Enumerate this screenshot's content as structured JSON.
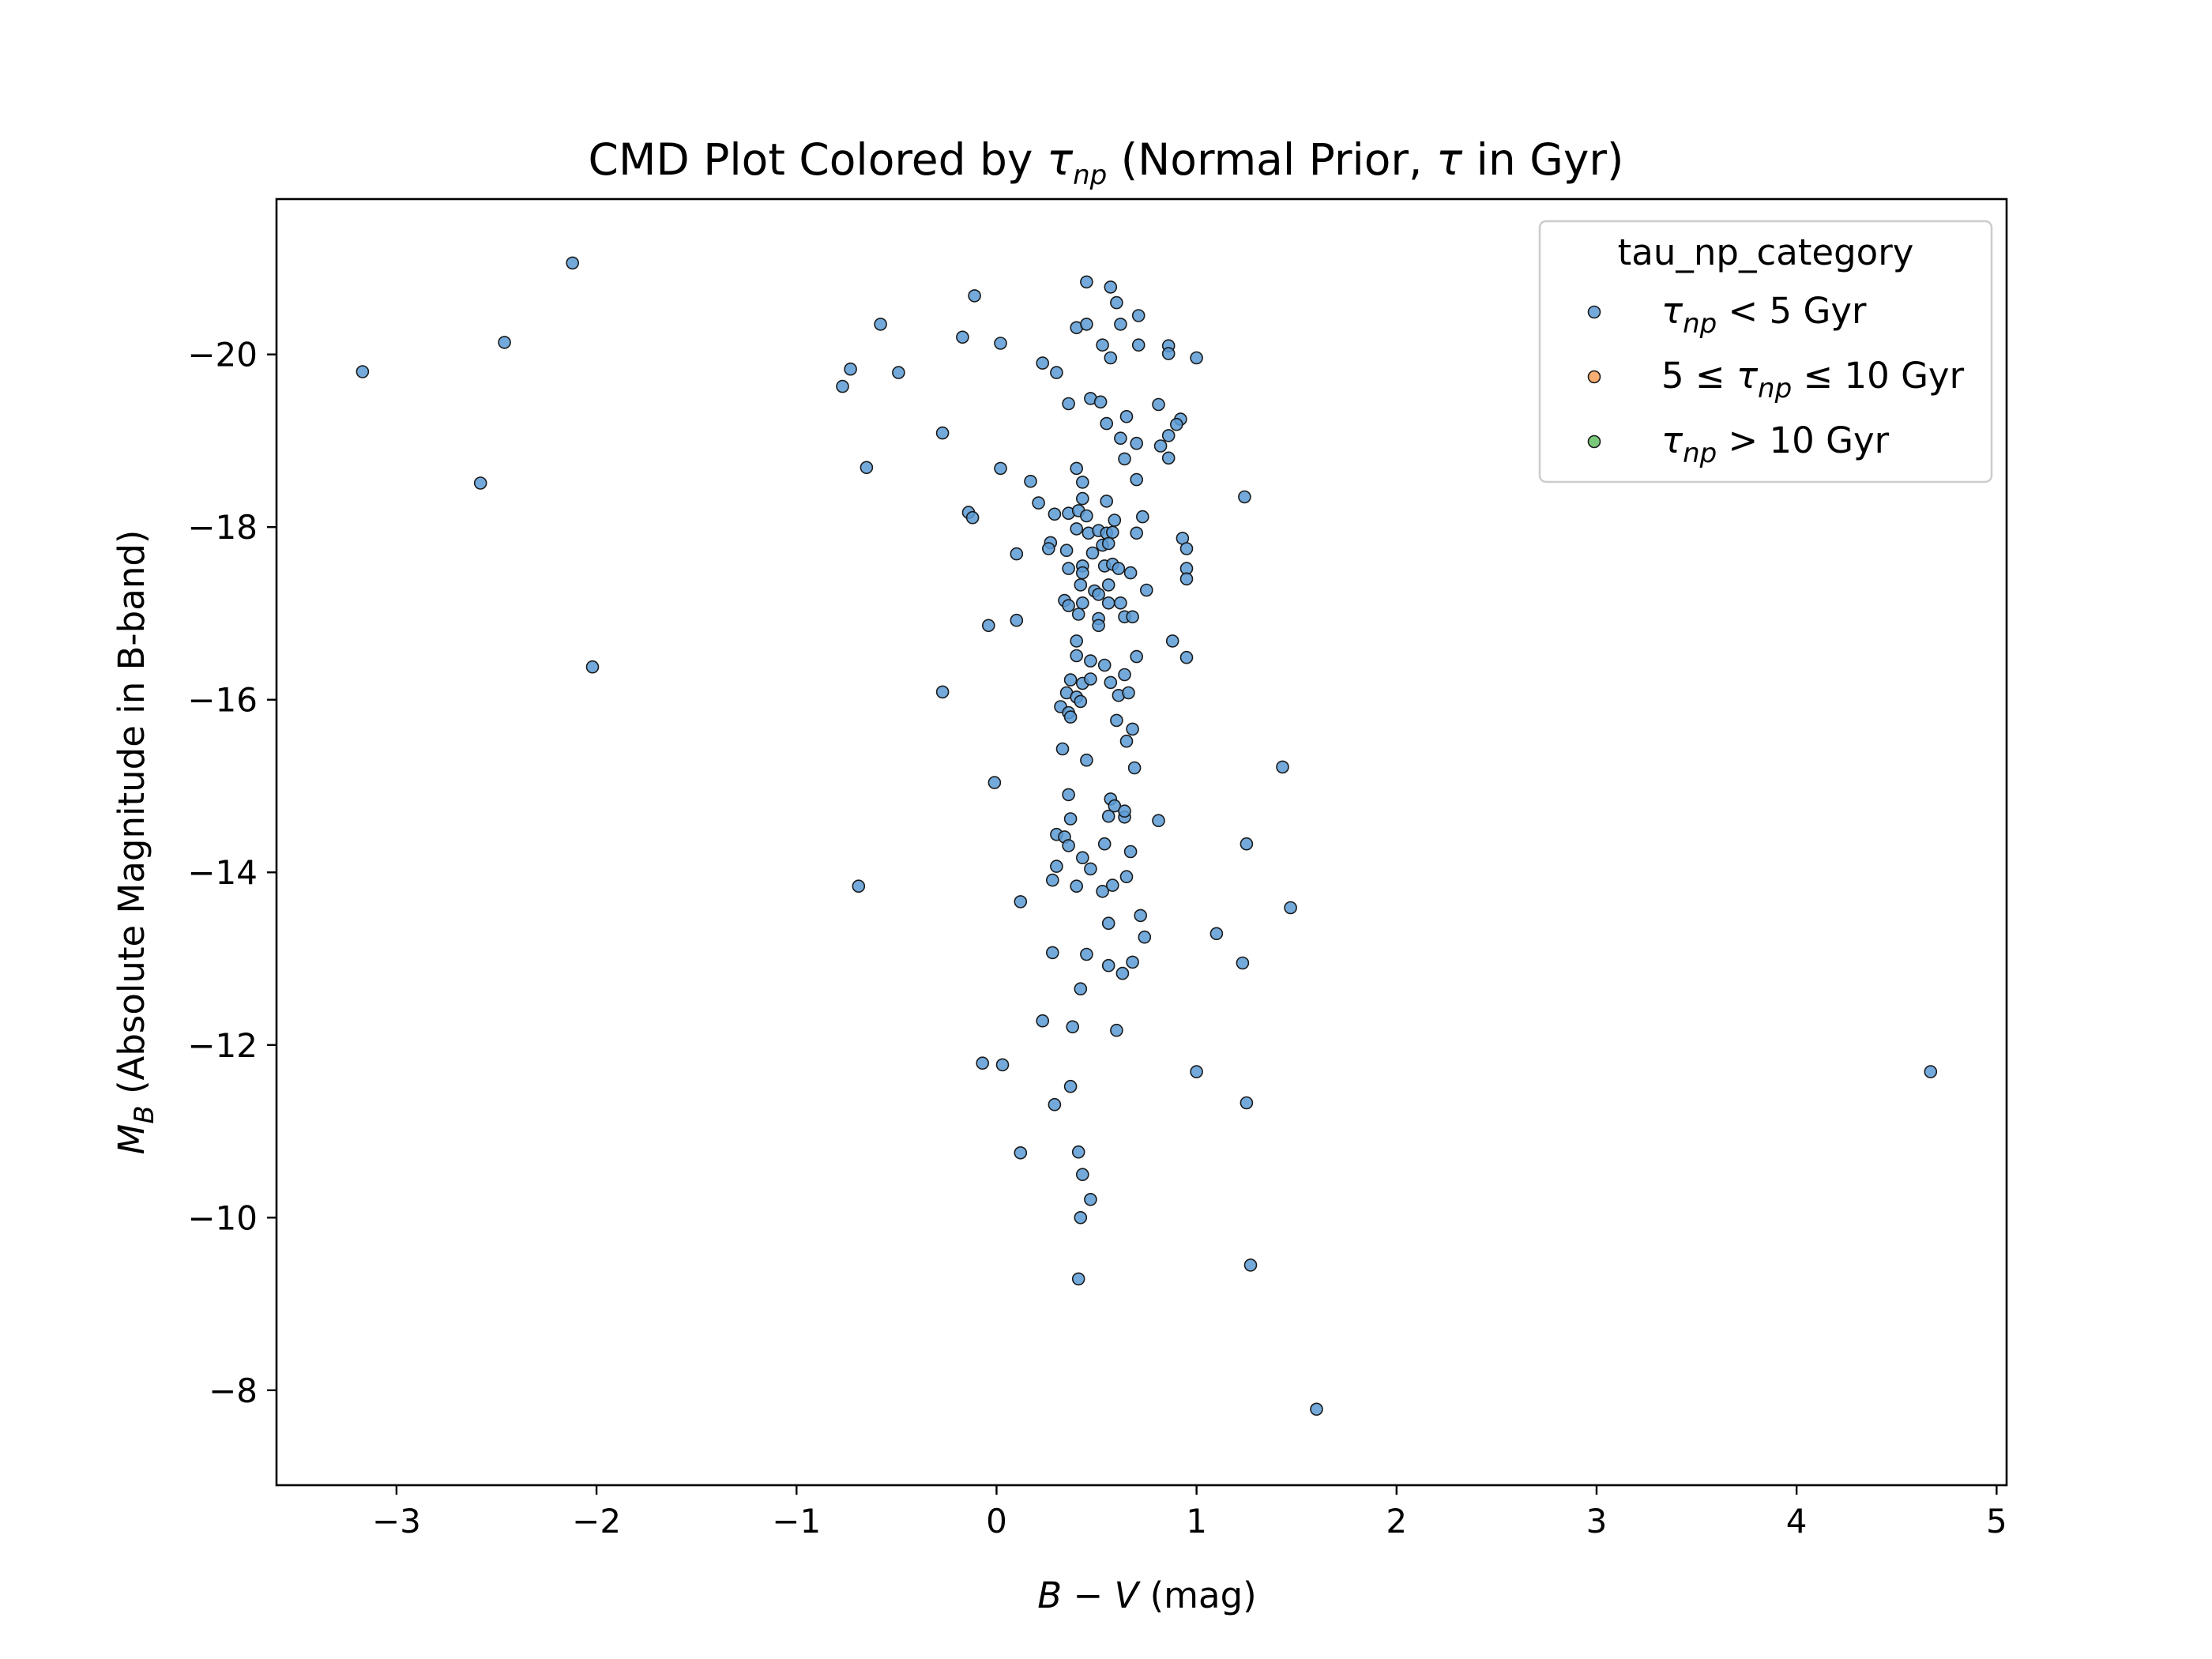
{
  "chart_data": {
    "type": "scatter",
    "title": {
      "prefix": "CMD Plot Colored by ",
      "tau_symbol": "τ",
      "tau_subscript": "np",
      "suffix_a": " (Normal Prior, ",
      "tau_symbol_2": "τ",
      "suffix_b": " in Gyr)"
    },
    "xlabel": {
      "b": "B",
      "minus": " − ",
      "v": "V",
      "unit": " (mag)"
    },
    "ylabel": {
      "m": "M",
      "sub": "B",
      "rest": " (Absolute Magnitude in B-band)"
    },
    "xlim": [
      -3.6,
      5.05
    ],
    "ylim": [
      -21.8,
      -6.9
    ],
    "y_inverted": true,
    "grid": false,
    "x_ticks": [
      {
        "value": -3,
        "label": "−3"
      },
      {
        "value": -2,
        "label": "−2"
      },
      {
        "value": -1,
        "label": "−1"
      },
      {
        "value": 0,
        "label": "0"
      },
      {
        "value": 1,
        "label": "1"
      },
      {
        "value": 2,
        "label": "2"
      },
      {
        "value": 3,
        "label": "3"
      },
      {
        "value": 4,
        "label": "4"
      },
      {
        "value": 5,
        "label": "5"
      }
    ],
    "y_ticks": [
      {
        "value": -20,
        "label": "−20"
      },
      {
        "value": -18,
        "label": "−18"
      },
      {
        "value": -16,
        "label": "−16"
      },
      {
        "value": -14,
        "label": "−14"
      },
      {
        "value": -12,
        "label": "−12"
      },
      {
        "value": -10,
        "label": "−10"
      },
      {
        "value": -8,
        "label": "−8"
      }
    ],
    "legend": {
      "title": "tau_np_category",
      "placement": "top-right",
      "entries": [
        {
          "tau": "τ",
          "sub": "np",
          "pre": "",
          "post": " < 5 Gyr",
          "color": "#5b9bd5"
        },
        {
          "tau": "τ",
          "sub": "np",
          "pre": "5 ≤ ",
          "post": " ≤ 10 Gyr",
          "color": "#f5a05a"
        },
        {
          "tau": "τ",
          "sub": "np",
          "pre": "",
          "post": " > 10 Gyr",
          "color": "#63c063"
        }
      ]
    },
    "series": [
      {
        "color": "#5b9bd5",
        "edge": "#1a1a1a",
        "points": [
          [
            -2.12,
            -21.06
          ],
          [
            -3.17,
            -19.8
          ],
          [
            -2.46,
            -20.14
          ],
          [
            -2.58,
            -18.51
          ],
          [
            -2.02,
            -16.38
          ],
          [
            -0.11,
            -20.68
          ],
          [
            -0.17,
            -20.2
          ],
          [
            0.02,
            -20.13
          ],
          [
            -0.58,
            -20.35
          ],
          [
            -0.73,
            -19.83
          ],
          [
            -0.77,
            -19.63
          ],
          [
            -0.49,
            -19.79
          ],
          [
            -0.27,
            -19.09
          ],
          [
            -0.65,
            -18.69
          ],
          [
            0.02,
            -18.68
          ],
          [
            -0.14,
            -18.17
          ],
          [
            -0.12,
            -18.11
          ],
          [
            0.1,
            -17.69
          ],
          [
            0.1,
            -16.92
          ],
          [
            -0.04,
            -16.86
          ],
          [
            -0.27,
            -16.09
          ],
          [
            -0.01,
            -15.04
          ],
          [
            -0.69,
            -13.84
          ],
          [
            0.12,
            -13.66
          ],
          [
            -0.07,
            -11.79
          ],
          [
            0.03,
            -11.77
          ],
          [
            0.12,
            -10.75
          ],
          [
            0.45,
            -20.84
          ],
          [
            0.57,
            -20.78
          ],
          [
            0.6,
            -20.6
          ],
          [
            0.4,
            -20.31
          ],
          [
            0.45,
            -20.35
          ],
          [
            0.62,
            -20.35
          ],
          [
            0.71,
            -20.45
          ],
          [
            0.53,
            -20.11
          ],
          [
            0.71,
            -20.11
          ],
          [
            0.86,
            -20.1
          ],
          [
            0.23,
            -19.9
          ],
          [
            0.3,
            -19.79
          ],
          [
            0.57,
            -19.96
          ],
          [
            0.86,
            -20.01
          ],
          [
            1.0,
            -19.96
          ],
          [
            0.36,
            -19.43
          ],
          [
            0.47,
            -19.49
          ],
          [
            0.52,
            -19.45
          ],
          [
            0.81,
            -19.42
          ],
          [
            0.55,
            -19.2
          ],
          [
            0.65,
            -19.28
          ],
          [
            0.92,
            -19.25
          ],
          [
            0.9,
            -19.19
          ],
          [
            0.62,
            -19.03
          ],
          [
            0.7,
            -18.97
          ],
          [
            0.86,
            -19.06
          ],
          [
            0.82,
            -18.94
          ],
          [
            0.64,
            -18.79
          ],
          [
            0.86,
            -18.8
          ],
          [
            0.4,
            -18.68
          ],
          [
            0.17,
            -18.53
          ],
          [
            0.43,
            -18.52
          ],
          [
            0.7,
            -18.55
          ],
          [
            0.21,
            -18.28
          ],
          [
            0.43,
            -18.33
          ],
          [
            0.55,
            -18.3
          ],
          [
            1.24,
            -18.35
          ],
          [
            0.29,
            -18.15
          ],
          [
            0.36,
            -18.16
          ],
          [
            0.41,
            -18.19
          ],
          [
            0.45,
            -18.13
          ],
          [
            0.59,
            -18.08
          ],
          [
            0.73,
            -18.12
          ],
          [
            0.4,
            -17.98
          ],
          [
            0.46,
            -17.93
          ],
          [
            0.51,
            -17.96
          ],
          [
            0.55,
            -17.93
          ],
          [
            0.58,
            -17.94
          ],
          [
            0.7,
            -17.93
          ],
          [
            0.93,
            -17.87
          ],
          [
            0.27,
            -17.82
          ],
          [
            0.26,
            -17.75
          ],
          [
            0.35,
            -17.73
          ],
          [
            0.48,
            -17.7
          ],
          [
            0.53,
            -17.79
          ],
          [
            0.56,
            -17.81
          ],
          [
            0.95,
            -17.75
          ],
          [
            0.36,
            -17.52
          ],
          [
            0.43,
            -17.55
          ],
          [
            0.54,
            -17.55
          ],
          [
            0.58,
            -17.57
          ],
          [
            0.61,
            -17.52
          ],
          [
            0.43,
            -17.47
          ],
          [
            0.67,
            -17.47
          ],
          [
            0.95,
            -17.52
          ],
          [
            0.95,
            -17.4
          ],
          [
            0.42,
            -17.33
          ],
          [
            0.49,
            -17.26
          ],
          [
            0.51,
            -17.22
          ],
          [
            0.56,
            -17.33
          ],
          [
            0.75,
            -17.27
          ],
          [
            0.34,
            -17.15
          ],
          [
            0.36,
            -17.09
          ],
          [
            0.43,
            -17.12
          ],
          [
            0.56,
            -17.12
          ],
          [
            0.62,
            -17.12
          ],
          [
            0.41,
            -16.99
          ],
          [
            0.51,
            -16.94
          ],
          [
            0.64,
            -16.96
          ],
          [
            0.68,
            -16.96
          ],
          [
            0.51,
            -16.86
          ],
          [
            0.4,
            -16.68
          ],
          [
            0.88,
            -16.68
          ],
          [
            0.4,
            -16.51
          ],
          [
            0.47,
            -16.45
          ],
          [
            0.54,
            -16.4
          ],
          [
            0.7,
            -16.5
          ],
          [
            0.95,
            -16.49
          ],
          [
            0.64,
            -16.29
          ],
          [
            0.37,
            -16.23
          ],
          [
            0.43,
            -16.19
          ],
          [
            0.47,
            -16.24
          ],
          [
            0.57,
            -16.2
          ],
          [
            0.35,
            -16.08
          ],
          [
            0.4,
            -16.03
          ],
          [
            0.42,
            -15.98
          ],
          [
            0.61,
            -16.05
          ],
          [
            0.66,
            -16.08
          ],
          [
            0.32,
            -15.92
          ],
          [
            0.36,
            -15.85
          ],
          [
            0.37,
            -15.8
          ],
          [
            0.6,
            -15.76
          ],
          [
            0.68,
            -15.66
          ],
          [
            0.65,
            -15.52
          ],
          [
            0.33,
            -15.43
          ],
          [
            0.45,
            -15.3
          ],
          [
            0.69,
            -15.21
          ],
          [
            1.43,
            -15.22
          ],
          [
            0.36,
            -14.9
          ],
          [
            0.57,
            -14.85
          ],
          [
            0.59,
            -14.77
          ],
          [
            0.37,
            -14.62
          ],
          [
            0.56,
            -14.65
          ],
          [
            0.64,
            -14.64
          ],
          [
            0.64,
            -14.71
          ],
          [
            0.81,
            -14.6
          ],
          [
            0.3,
            -14.44
          ],
          [
            0.34,
            -14.41
          ],
          [
            0.36,
            -14.31
          ],
          [
            0.43,
            -14.17
          ],
          [
            0.54,
            -14.33
          ],
          [
            0.67,
            -14.24
          ],
          [
            1.25,
            -14.33
          ],
          [
            0.3,
            -14.07
          ],
          [
            0.47,
            -14.04
          ],
          [
            0.65,
            -13.95
          ],
          [
            0.28,
            -13.91
          ],
          [
            0.4,
            -13.84
          ],
          [
            0.53,
            -13.78
          ],
          [
            0.58,
            -13.85
          ],
          [
            1.47,
            -13.59
          ],
          [
            0.72,
            -13.5
          ],
          [
            0.56,
            -13.41
          ],
          [
            1.1,
            -13.29
          ],
          [
            0.74,
            -13.25
          ],
          [
            0.28,
            -13.07
          ],
          [
            0.45,
            -13.05
          ],
          [
            0.56,
            -12.92
          ],
          [
            0.68,
            -12.96
          ],
          [
            1.23,
            -12.95
          ],
          [
            0.63,
            -12.83
          ],
          [
            0.42,
            -12.65
          ],
          [
            0.23,
            -12.28
          ],
          [
            0.38,
            -12.21
          ],
          [
            0.6,
            -12.17
          ],
          [
            1.0,
            -11.69
          ],
          [
            0.37,
            -11.52
          ],
          [
            1.25,
            -11.33
          ],
          [
            0.29,
            -11.31
          ],
          [
            4.67,
            -11.69
          ],
          [
            0.41,
            -10.76
          ],
          [
            0.43,
            -10.5
          ],
          [
            0.47,
            -10.21
          ],
          [
            0.42,
            -10.0
          ],
          [
            1.27,
            -9.45
          ],
          [
            0.41,
            -9.29
          ],
          [
            1.6,
            -7.78
          ]
        ]
      }
    ]
  }
}
